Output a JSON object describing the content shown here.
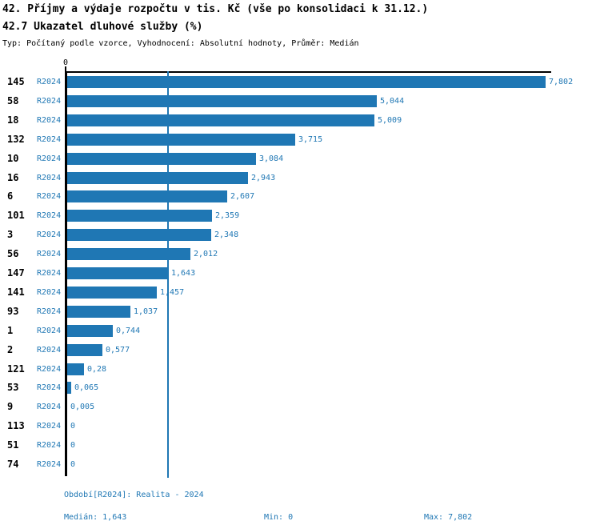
{
  "header": {
    "title_line1": "42. Příjmy a výdaje rozpočtu v tis. Kč (vše po konsolidaci k 31.12.)",
    "title_line2": "42.7 Ukazatel dluhové služby (%)",
    "subtitle": "Typ: Počítaný podle vzorce, Vyhodnocení: Absolutní hodnoty, Průměr: Medián"
  },
  "colors": {
    "bar": "#1F77B4",
    "blue_text": "#1F77B4",
    "axis": "#000000",
    "median_line": "#1F77B4"
  },
  "axis": {
    "zero_label": "0"
  },
  "chart_data": {
    "type": "bar",
    "orientation": "horizontal",
    "title": "42.7 Ukazatel dluhové služby (%)",
    "xlabel": "",
    "ylabel": "",
    "xlim": [
      0,
      7.802
    ],
    "grid": false,
    "legend_position": "none",
    "series_label": "R2024",
    "categories": [
      "145",
      "58",
      "18",
      "132",
      "10",
      "16",
      "6",
      "101",
      "3",
      "56",
      "147",
      "141",
      "93",
      "1",
      "2",
      "121",
      "53",
      "9",
      "113",
      "51",
      "74"
    ],
    "values": [
      7.802,
      5.044,
      5.009,
      3.715,
      3.084,
      2.943,
      2.607,
      2.359,
      2.348,
      2.012,
      1.643,
      1.457,
      1.037,
      0.744,
      0.577,
      0.28,
      0.065,
      0.005,
      0,
      0,
      0
    ],
    "value_labels": [
      "7,802",
      "5,044",
      "5,009",
      "3,715",
      "3,084",
      "2,943",
      "2,607",
      "2,359",
      "2,348",
      "2,012",
      "1,643",
      "1,457",
      "1,037",
      "0,744",
      "0,577",
      "0,28",
      "0,065",
      "0,005",
      "0",
      "0",
      "0"
    ],
    "median": 1.643,
    "min": 0,
    "max": 7.802
  },
  "footer": {
    "period": "Období[R2024]: Realita - 2024",
    "median": "Medián: 1,643",
    "min": "Min: 0",
    "max": "Max: 7,802"
  }
}
